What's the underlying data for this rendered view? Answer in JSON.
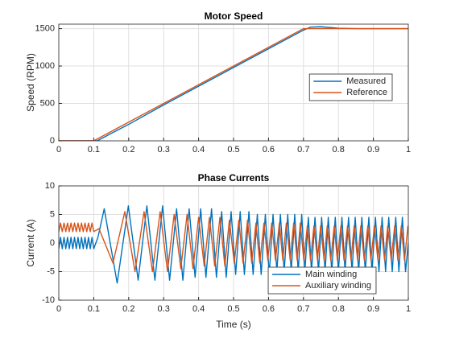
{
  "chart_data": [
    {
      "type": "line",
      "title": "Motor Speed",
      "ylabel": "Speed (RPM)",
      "xlim": [
        0,
        1
      ],
      "ylim": [
        0,
        1560
      ],
      "xticks": [
        0,
        0.1,
        0.2,
        0.3,
        0.4,
        0.5,
        0.6,
        0.7,
        0.8,
        0.9,
        1
      ],
      "yticks": [
        0,
        500,
        1000,
        1500
      ],
      "grid": true,
      "legend": "east",
      "series": [
        {
          "name": "Measured",
          "color": "#0072BD",
          "x": [
            0,
            0.1,
            0.11,
            0.15,
            0.2,
            0.3,
            0.4,
            0.5,
            0.6,
            0.7,
            0.72,
            0.75,
            0.8,
            0.85,
            0.9,
            1
          ],
          "values": [
            0,
            0,
            0,
            100,
            220,
            480,
            730,
            980,
            1230,
            1480,
            1520,
            1525,
            1505,
            1500,
            1500,
            1500
          ]
        },
        {
          "name": "Reference",
          "color": "#D95319",
          "x": [
            0,
            0.1,
            0.7,
            1
          ],
          "values": [
            0,
            0,
            1500,
            1500
          ]
        }
      ]
    },
    {
      "type": "line",
      "title": "Phase Currents",
      "ylabel": "Current (A)",
      "xlabel": "Time (s)",
      "xlim": [
        0,
        1
      ],
      "ylim": [
        -10,
        10
      ],
      "xticks": [
        0,
        0.1,
        0.2,
        0.3,
        0.4,
        0.5,
        0.6,
        0.7,
        0.8,
        0.9,
        1
      ],
      "yticks": [
        -10,
        -5,
        0,
        5,
        10
      ],
      "grid": true,
      "legend": "south",
      "series": [
        {
          "name": "Main winding",
          "color": "#0072BD",
          "x": [
            0,
            0.005,
            0.01,
            0.015,
            0.02,
            0.025,
            0.03,
            0.035,
            0.04,
            0.045,
            0.05,
            0.055,
            0.06,
            0.065,
            0.07,
            0.075,
            0.08,
            0.085,
            0.09,
            0.095,
            0.1,
            0.112,
            0.13,
            0.167,
            0.199,
            0.227,
            0.252,
            0.275,
            0.297,
            0.317,
            0.337,
            0.355,
            0.373,
            0.39,
            0.406,
            0.421,
            0.437,
            0.451,
            0.466,
            0.479,
            0.493,
            0.506,
            0.519,
            0.531,
            0.544,
            0.556,
            0.568,
            0.579,
            0.591,
            0.602,
            0.613,
            0.624,
            0.634,
            0.645,
            0.655,
            0.665,
            0.675,
            0.685,
            0.695,
            0.704,
            0.714,
            0.723,
            0.733,
            0.743,
            0.752,
            0.762,
            0.771,
            0.781,
            0.791,
            0.8,
            0.81,
            0.819,
            0.829,
            0.839,
            0.848,
            0.858,
            0.867,
            0.877,
            0.887,
            0.896,
            0.906,
            0.916,
            0.925,
            0.935,
            0.944,
            0.954,
            0.964,
            0.973,
            0.983,
            0.992,
            1
          ],
          "values": [
            -1,
            1,
            -1,
            1,
            -1,
            1,
            -1,
            1,
            -1,
            1,
            -1,
            1,
            -1,
            1,
            -1,
            1,
            -1,
            1,
            -1,
            1,
            -1,
            1,
            6,
            -7,
            6.5,
            -6.5,
            6.5,
            -6.5,
            6.5,
            -6.5,
            6,
            -6.5,
            6,
            -6,
            6,
            -6,
            6,
            -6,
            5.5,
            -6,
            5.5,
            -5.5,
            5.5,
            -5.5,
            5.5,
            -5.5,
            5,
            -5.5,
            5,
            -5.5,
            5,
            -5,
            5,
            -5,
            5,
            -5,
            5,
            -5,
            5,
            -5,
            4.5,
            -5,
            4.5,
            -5,
            4.5,
            -5,
            4.5,
            -5,
            4.5,
            -5,
            4.5,
            -5,
            4.5,
            -5,
            4.5,
            -5,
            4.5,
            -5,
            4.5,
            -5,
            4.5,
            -5,
            4.5,
            -5,
            4.5,
            -5,
            4.5,
            -5,
            4.5,
            -5,
            0
          ]
        },
        {
          "name": "Auxiliary winding",
          "color": "#D95319",
          "x": [
            0,
            0.005,
            0.01,
            0.015,
            0.02,
            0.025,
            0.03,
            0.035,
            0.04,
            0.045,
            0.05,
            0.055,
            0.06,
            0.065,
            0.07,
            0.075,
            0.08,
            0.085,
            0.09,
            0.095,
            0.1,
            0.115,
            0.155,
            0.189,
            0.218,
            0.244,
            0.268,
            0.29,
            0.311,
            0.33,
            0.349,
            0.367,
            0.384,
            0.4,
            0.416,
            0.431,
            0.446,
            0.461,
            0.475,
            0.488,
            0.502,
            0.515,
            0.527,
            0.54,
            0.552,
            0.564,
            0.575,
            0.587,
            0.598,
            0.609,
            0.62,
            0.631,
            0.641,
            0.651,
            0.662,
            0.672,
            0.682,
            0.691,
            0.701,
            0.711,
            0.72,
            0.73,
            0.74,
            0.749,
            0.759,
            0.768,
            0.778,
            0.788,
            0.797,
            0.807,
            0.816,
            0.826,
            0.836,
            0.845,
            0.855,
            0.864,
            0.874,
            0.884,
            0.893,
            0.903,
            0.913,
            0.922,
            0.932,
            0.941,
            0.951,
            0.961,
            0.97,
            0.98,
            0.989,
            0.999
          ],
          "values": [
            2,
            3.5,
            2,
            3.5,
            2,
            3.5,
            2,
            3.5,
            2,
            3.5,
            2,
            3.5,
            2,
            3.5,
            2,
            3.5,
            2,
            3.5,
            2,
            3.5,
            2,
            2.5,
            -3.5,
            5.5,
            -5,
            5.5,
            -5,
            5.5,
            -5,
            5,
            -4.5,
            5,
            -4.5,
            4.5,
            -4,
            4.5,
            -4,
            4.5,
            -4,
            4,
            -3.5,
            4,
            -3.5,
            4,
            -3.5,
            3.5,
            -3.5,
            3.5,
            -3,
            3.5,
            -3,
            3.5,
            -3,
            3.5,
            -3,
            3.5,
            -3,
            3.5,
            -3,
            3,
            -3,
            3,
            -3,
            3,
            -3,
            3,
            -3,
            3,
            -3,
            3,
            -3,
            3,
            -3,
            3,
            -3,
            3,
            -3,
            3,
            -3,
            3,
            -3,
            3,
            -3,
            3,
            -3,
            3,
            -3,
            3,
            -3,
            3
          ]
        }
      ]
    }
  ]
}
